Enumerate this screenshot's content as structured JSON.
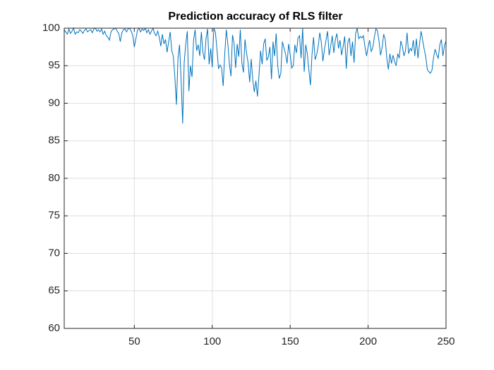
{
  "chart_data": {
    "type": "line",
    "title": "Prediction accuracy of RLS filter",
    "x": [
      5,
      6,
      7,
      8,
      9,
      10,
      11,
      12,
      13,
      14,
      15,
      16,
      17,
      18,
      19,
      20,
      21,
      22,
      23,
      24,
      25,
      26,
      27,
      28,
      29,
      30,
      31,
      32,
      33,
      34,
      35,
      36,
      37,
      38,
      39,
      40,
      41,
      42,
      43,
      44,
      45,
      46,
      47,
      48,
      49,
      50,
      51,
      52,
      53,
      54,
      55,
      56,
      57,
      58,
      59,
      60,
      61,
      62,
      63,
      64,
      65,
      66,
      67,
      68,
      69,
      70,
      71,
      72,
      73,
      74,
      75,
      76,
      77,
      78,
      79,
      80,
      81,
      82,
      83,
      84,
      85,
      86,
      87,
      88,
      89,
      90,
      91,
      92,
      93,
      94,
      95,
      96,
      97,
      98,
      99,
      100,
      101,
      102,
      103,
      104,
      105,
      106,
      107,
      108,
      109,
      110,
      111,
      112,
      113,
      114,
      115,
      116,
      117,
      118,
      119,
      120,
      121,
      122,
      123,
      124,
      125,
      126,
      127,
      128,
      129,
      130,
      131,
      132,
      133,
      134,
      135,
      136,
      137,
      138,
      139,
      140,
      141,
      142,
      143,
      144,
      145,
      146,
      147,
      148,
      149,
      150,
      151,
      152,
      153,
      154,
      155,
      156,
      157,
      158,
      159,
      160,
      161,
      162,
      163,
      164,
      165,
      166,
      167,
      168,
      169,
      170,
      171,
      172,
      173,
      174,
      175,
      176,
      177,
      178,
      179,
      180,
      181,
      182,
      183,
      184,
      185,
      186,
      187,
      188,
      189,
      190,
      191,
      192,
      193,
      194,
      195,
      196,
      197,
      198,
      199,
      200,
      201,
      202,
      203,
      204,
      205,
      206,
      207,
      208,
      209,
      210,
      211,
      212,
      213,
      214,
      215,
      216,
      217,
      218,
      219,
      220,
      221,
      222,
      223,
      224,
      225,
      226,
      227,
      228,
      229,
      230,
      231,
      232,
      233,
      234,
      235,
      236,
      237,
      238,
      239,
      240,
      241,
      242,
      243,
      244,
      245,
      246,
      247,
      248,
      249,
      250
    ],
    "series": [
      {
        "color": "#0072bd",
        "values": [
          99.8,
          99.5,
          99.2,
          99.9,
          99.3,
          99.6,
          100,
          99.2,
          99.5,
          99.4,
          99.8,
          99.6,
          99.3,
          99.7,
          99.9,
          99.5,
          99.7,
          99.8,
          99.4,
          99.9,
          100,
          99.6,
          99.8,
          99.5,
          99.9,
          99.2,
          99.6,
          99.0,
          98.8,
          98.4,
          99.5,
          99.8,
          99.9,
          100,
          99.6,
          99.3,
          98.2,
          99.4,
          99.8,
          99.9,
          99.5,
          99.9,
          100,
          99.6,
          99.0,
          97.5,
          98.6,
          99.7,
          100,
          99.5,
          99.9,
          99.7,
          100,
          99.4,
          99.8,
          99.2,
          99.6,
          100,
          99.3,
          99.0,
          99.6,
          98.8,
          97.6,
          99.2,
          97.9,
          98.5,
          96.8,
          98.2,
          99.5,
          97.0,
          96.3,
          93.5,
          89.8,
          96.0,
          97.8,
          93.2,
          87.3,
          95.5,
          97.9,
          99.6,
          91.6,
          95.0,
          93.5,
          98.4,
          99.8,
          97.0,
          97.8,
          96.3,
          99.5,
          96.8,
          95.8,
          98.6,
          99.9,
          95.2,
          97.3,
          94.8,
          100,
          99.5,
          97.2,
          94.6,
          95.1,
          94.7,
          92.3,
          96.5,
          99.8,
          97.9,
          95.2,
          93.6,
          99.1,
          98.0,
          94.7,
          97.9,
          96.2,
          99.8,
          95.4,
          94.1,
          98.5,
          96.7,
          95.4,
          92.8,
          95.9,
          93.1,
          91.5,
          93.0,
          90.9,
          93.8,
          97.0,
          95.2,
          97.9,
          98.6,
          95.7,
          96.2,
          97.5,
          93.2,
          98.2,
          96.3,
          99.3,
          95.0,
          93.3,
          94.0,
          98.2,
          97.4,
          96.6,
          95.3,
          97.9,
          96.5,
          94.7,
          95.0,
          97.8,
          96.7,
          98.7,
          99.0,
          96.0,
          100,
          94.2,
          97.8,
          96.6,
          94.4,
          92.4,
          96.5,
          98.8,
          95.8,
          96.5,
          97.6,
          99.4,
          98.1,
          95.6,
          97.2,
          98.4,
          99.6,
          96.4,
          97.6,
          99.0,
          96.7,
          98.5,
          99.3,
          97.3,
          98.4,
          96.4,
          97.6,
          98.9,
          94.6,
          98.1,
          98.7,
          96.3,
          98.2,
          95.4,
          99.3,
          100,
          98.6,
          98.9,
          98.7,
          99.0,
          97.5,
          96.3,
          97.5,
          98.4,
          96.9,
          97.4,
          98.8,
          99.9,
          99.7,
          98.3,
          96.4,
          97.4,
          99.2,
          98.5,
          96.0,
          94.5,
          96.6,
          95.3,
          96.4,
          95.6,
          95.0,
          96.6,
          96.0,
          98.3,
          97.6,
          96.3,
          97.0,
          99.4,
          96.6,
          97.3,
          97.0,
          98.4,
          96.3,
          98.6,
          96.0,
          97.9,
          99.6,
          98.4,
          97.2,
          96.2,
          94.5,
          94.2,
          94.0,
          94.4,
          96.1,
          97.2,
          96.5,
          96.0,
          97.8,
          98.5,
          96.3,
          97.7,
          98.3
        ]
      }
    ],
    "xlim": [
      5,
      250
    ],
    "xticks": [
      50,
      100,
      150,
      200,
      250
    ],
    "ylim": [
      60,
      100
    ],
    "yticks": [
      60,
      65,
      70,
      75,
      80,
      85,
      90,
      95,
      100
    ],
    "grid": true
  }
}
